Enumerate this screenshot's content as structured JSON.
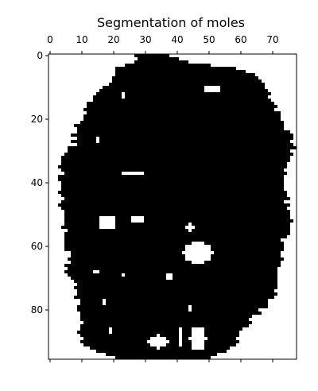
{
  "chart_data": {
    "type": "heatmap",
    "title": "Segmentation of moles",
    "xlabel": "",
    "ylabel": "",
    "xlim": [
      -0.5,
      77.5
    ],
    "ylim": [
      95.5,
      -0.5
    ],
    "x_ticks": [
      0,
      10,
      20,
      30,
      40,
      50,
      60,
      70
    ],
    "y_ticks": [
      0,
      20,
      40,
      60,
      80
    ],
    "x_tick_position": "top",
    "grid": false,
    "colormap": "binary",
    "colors": {
      "filled": "#000000",
      "empty": "#ffffff"
    },
    "value_meaning": {
      "1": "mole",
      "0": "background"
    },
    "mask_shape": [
      96,
      78
    ],
    "outline": {
      "top_spine_start_col": 27,
      "left_edge": [
        [
          0,
          28
        ],
        [
          2,
          27
        ],
        [
          4,
          21
        ],
        [
          8,
          20
        ],
        [
          12,
          15
        ],
        [
          16,
          12
        ],
        [
          20,
          10
        ],
        [
          24,
          8
        ],
        [
          28,
          8
        ],
        [
          32,
          4
        ],
        [
          36,
          4
        ],
        [
          40,
          3
        ],
        [
          44,
          4
        ],
        [
          48,
          4
        ],
        [
          52,
          5
        ],
        [
          56,
          5
        ],
        [
          60,
          5
        ],
        [
          64,
          7
        ],
        [
          68,
          5
        ],
        [
          72,
          9
        ],
        [
          76,
          9
        ],
        [
          80,
          10
        ],
        [
          84,
          10
        ],
        [
          88,
          10
        ],
        [
          90,
          11
        ],
        [
          92,
          12
        ],
        [
          94,
          18
        ],
        [
          95,
          20
        ]
      ],
      "right_edge": [
        [
          0,
          38
        ],
        [
          2,
          43
        ],
        [
          4,
          57
        ],
        [
          6,
          64
        ],
        [
          8,
          66
        ],
        [
          10,
          67
        ],
        [
          12,
          68
        ],
        [
          16,
          70
        ],
        [
          20,
          72
        ],
        [
          24,
          75
        ],
        [
          28,
          76
        ],
        [
          32,
          76
        ],
        [
          36,
          73
        ],
        [
          40,
          73
        ],
        [
          44,
          74
        ],
        [
          48,
          74
        ],
        [
          52,
          76
        ],
        [
          56,
          74
        ],
        [
          60,
          72
        ],
        [
          64,
          72
        ],
        [
          68,
          71
        ],
        [
          72,
          70
        ],
        [
          76,
          70
        ],
        [
          80,
          66
        ],
        [
          84,
          62
        ],
        [
          88,
          58
        ],
        [
          90,
          58
        ],
        [
          92,
          57
        ],
        [
          94,
          52
        ],
        [
          95,
          50
        ]
      ],
      "holes": [
        {
          "row": 5.5,
          "col": 45.5,
          "rx": 1.0,
          "ry": 0.5
        },
        {
          "row": 10.5,
          "col": 51.0,
          "rx": 3.0,
          "ry": 1.0
        },
        {
          "row": 12.5,
          "col": 23.0,
          "rx": 1.5,
          "ry": 0.5
        },
        {
          "row": 26.5,
          "col": 15.0,
          "rx": 1.0,
          "ry": 1.0
        },
        {
          "row": 37.0,
          "col": 26.0,
          "rx": 3.0,
          "ry": 0.6
        },
        {
          "row": 52.5,
          "col": 18.0,
          "rx": 2.8,
          "ry": 2.2
        },
        {
          "row": 51.5,
          "col": 27.5,
          "rx": 2.5,
          "ry": 0.8
        },
        {
          "row": 54.0,
          "col": 44.0,
          "rx": 1.0,
          "ry": 1.0
        },
        {
          "row": 62.0,
          "col": 46.5,
          "rx": 4.5,
          "ry": 3.2
        },
        {
          "row": 68.0,
          "col": 14.5,
          "rx": 1.0,
          "ry": 0.5
        },
        {
          "row": 69.0,
          "col": 23.0,
          "rx": 0.8,
          "ry": 0.6
        },
        {
          "row": 69.5,
          "col": 37.5,
          "rx": 1.0,
          "ry": 0.6
        },
        {
          "row": 77.5,
          "col": 17.0,
          "rx": 0.5,
          "ry": 0.5
        },
        {
          "row": 79.5,
          "col": 44.0,
          "rx": 1.0,
          "ry": 0.6
        },
        {
          "row": 90.0,
          "col": 34.0,
          "rx": 3.0,
          "ry": 2.0
        },
        {
          "row": 89.0,
          "col": 46.5,
          "rx": 2.5,
          "ry": 4.0
        },
        {
          "row": 88.5,
          "col": 41.0,
          "rx": 1.0,
          "ry": 3.0
        },
        {
          "row": 86.5,
          "col": 19.0,
          "rx": 1.0,
          "ry": 1.0
        }
      ]
    }
  }
}
